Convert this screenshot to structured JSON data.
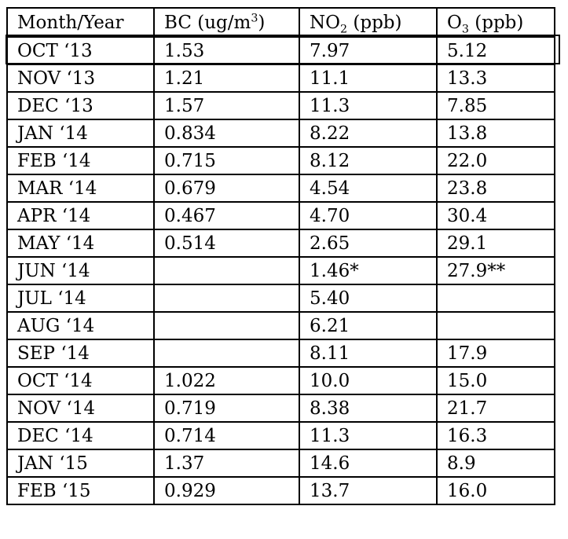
{
  "colors": {
    "background": "#ffffff",
    "border": "#000000",
    "text": "#000000"
  },
  "table": {
    "columns": [
      {
        "name": "month-year",
        "parts": [
          {
            "text": "Month/Year"
          }
        ]
      },
      {
        "name": "bc",
        "parts": [
          {
            "text": "BC (ug/m"
          },
          {
            "text": "3",
            "script": "sup"
          },
          {
            "text": ")"
          }
        ]
      },
      {
        "name": "no2",
        "parts": [
          {
            "text": "NO"
          },
          {
            "text": "2",
            "script": "sub"
          },
          {
            "text": " (ppb)"
          }
        ]
      },
      {
        "name": "o3",
        "parts": [
          {
            "text": "O"
          },
          {
            "text": "3",
            "script": "sub"
          },
          {
            "text": " (ppb)"
          }
        ]
      }
    ],
    "rows": [
      [
        "OCT ‘13",
        "1.53",
        "7.97",
        "5.12"
      ],
      [
        "NOV ‘13",
        "1.21",
        "11.1",
        "13.3"
      ],
      [
        "DEC ‘13",
        "1.57",
        "11.3",
        "7.85"
      ],
      [
        "JAN ‘14",
        "0.834",
        "8.22",
        "13.8"
      ],
      [
        "FEB ‘14",
        "0.715",
        "8.12",
        "22.0"
      ],
      [
        "MAR ‘14",
        "0.679",
        "4.54",
        "23.8"
      ],
      [
        "APR ‘14",
        "0.467",
        "4.70",
        "30.4"
      ],
      [
        "MAY ‘14",
        "0.514",
        "2.65",
        "29.1"
      ],
      [
        "JUN ‘14",
        "",
        "1.46*",
        "27.9**"
      ],
      [
        "JUL ‘14",
        "",
        "5.40",
        ""
      ],
      [
        "AUG ‘14",
        "",
        "6.21",
        ""
      ],
      [
        "SEP ‘14",
        "",
        "8.11",
        "17.9"
      ],
      [
        "OCT ‘14",
        "1.022",
        "10.0",
        "15.0"
      ],
      [
        "NOV ‘14",
        "0.719",
        "8.38",
        "21.7"
      ],
      [
        "DEC ‘14",
        "0.714",
        "11.3",
        "16.3"
      ],
      [
        "JAN ‘15",
        "1.37",
        "14.6",
        "8.9"
      ],
      [
        "FEB ‘15",
        "0.929",
        "13.7",
        "16.0"
      ]
    ],
    "highlighted_row": 0
  }
}
